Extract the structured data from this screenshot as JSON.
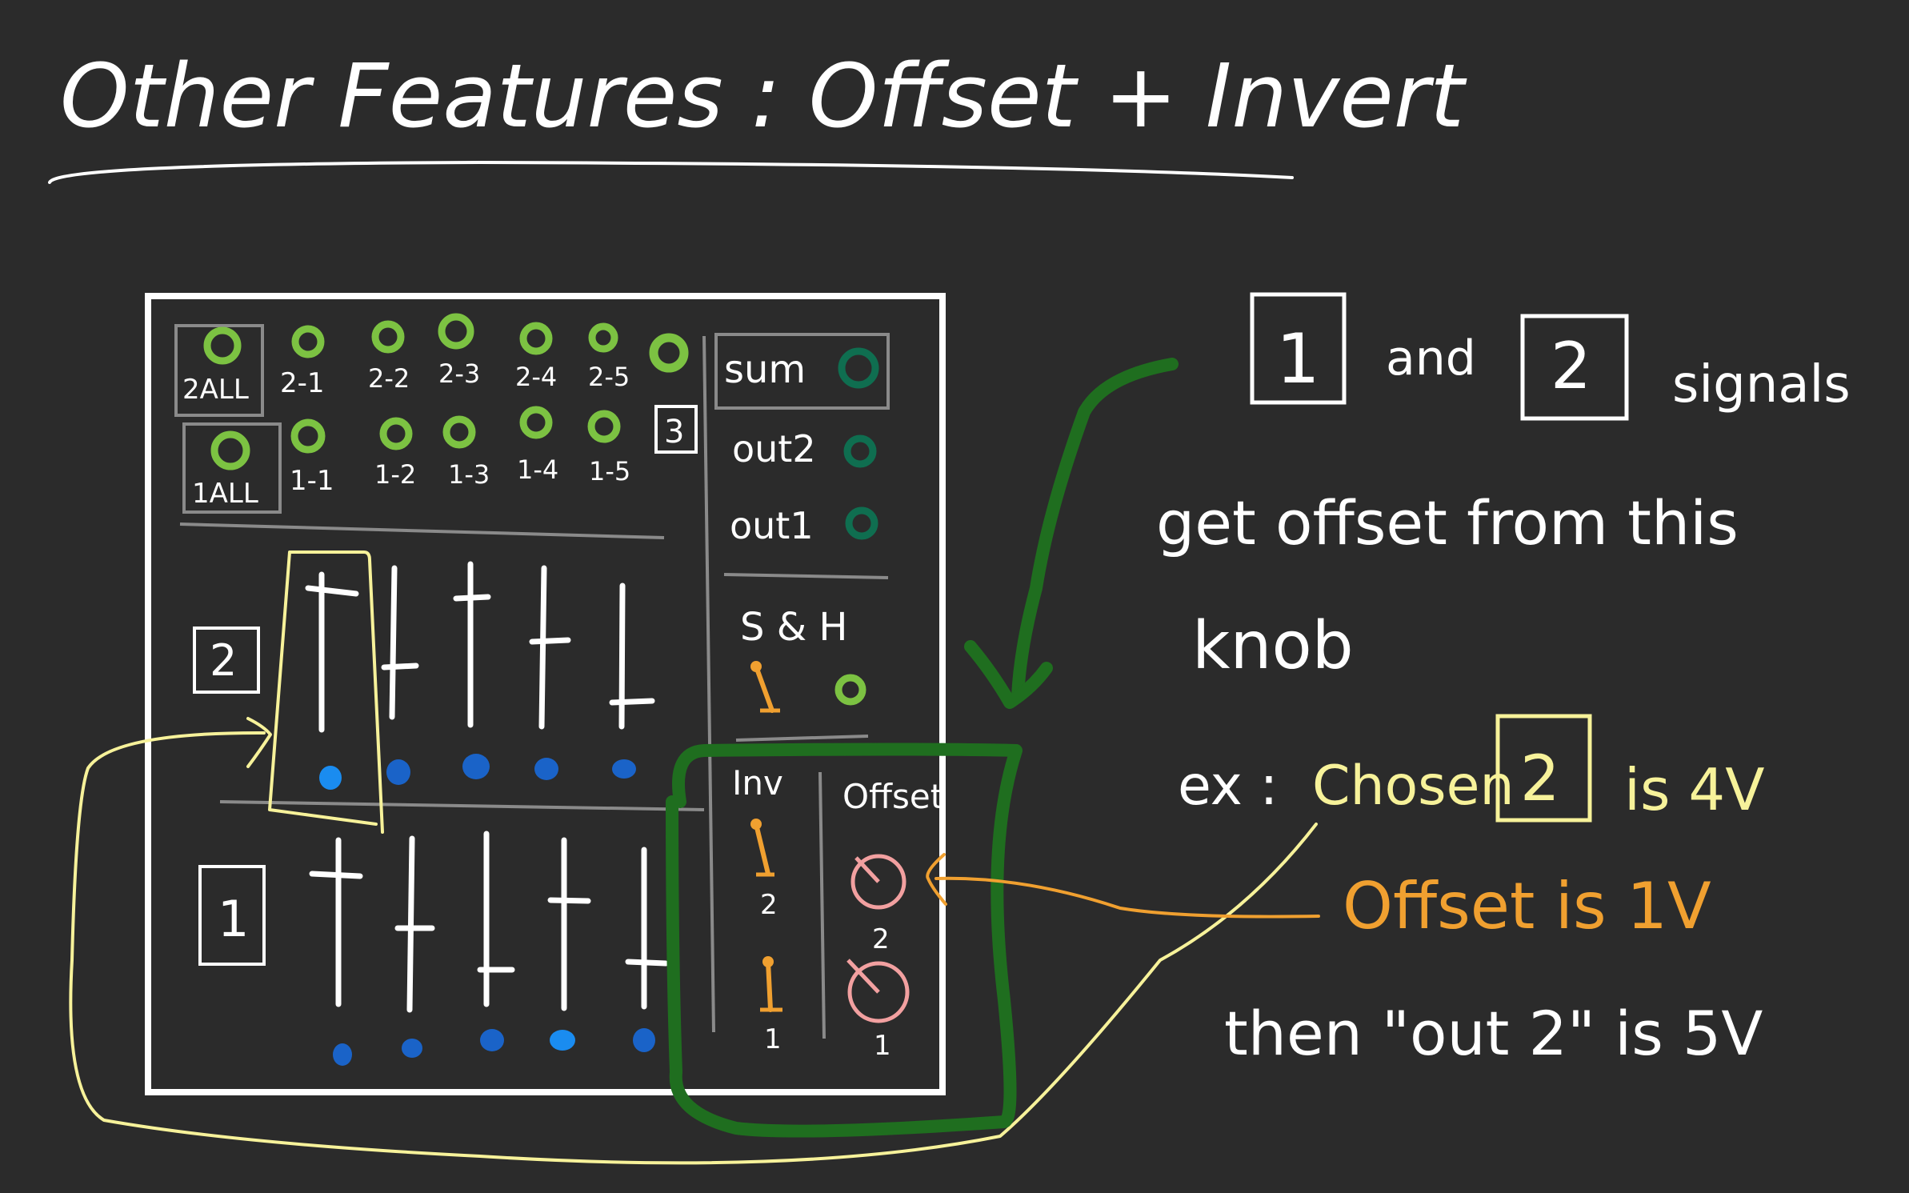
{
  "title": "Other Features : Offset + Invert",
  "module": {
    "row2_labels": [
      "2ALL",
      "2-1",
      "2-2",
      "2-3",
      "2-4",
      "2-5"
    ],
    "row1_labels": [
      "1ALL",
      "1-1",
      "1-2",
      "1-3",
      "1-4",
      "1-5"
    ],
    "box3_label": "3",
    "outputs": [
      "sum",
      "out2",
      "out1"
    ],
    "sh_label": "S & H",
    "fader_box_2": "2",
    "fader_box_1": "1",
    "inv_label": "Inv",
    "offset_label": "Offset",
    "inv_numbers": [
      "2",
      "1"
    ],
    "offset_numbers": [
      "2",
      "1"
    ]
  },
  "notes": {
    "box_1": "1",
    "and": "and",
    "box_2": "2",
    "signals": "signals",
    "line2": "get offset from this",
    "line3": "knob",
    "ex": "ex :",
    "chosen": "Chosen",
    "chosen_box": "2",
    "is_4v": "is 4V",
    "offset_is_1v": "Offset is 1V",
    "then": "then \"out 2\" is 5V"
  },
  "colors": {
    "background": "#2b2b2b",
    "ink": "#ffffff",
    "jack_green": "#7cc242",
    "out_jack": "#0f6e50",
    "led_blue": "#1a63c8",
    "highlight_yellow": "#f7f29a",
    "orange": "#f0a030",
    "pink_knob": "#f2a0a0",
    "arrow_green": "#1f6e1f",
    "gray_line": "#8a8a8a"
  }
}
